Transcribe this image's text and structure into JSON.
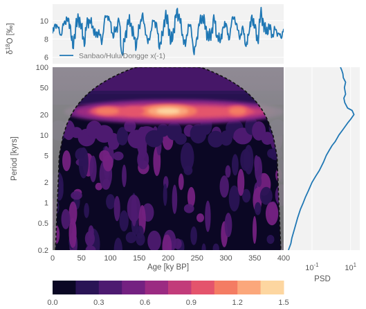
{
  "chart_data": [
    {
      "type": "line",
      "panel": "timeseries",
      "ylabel": "δ18O [‰]",
      "ylabel_super": "18",
      "ylabel_pre": "δ",
      "ylabel_post": "O [‰]",
      "ylim": [
        5.3,
        11.8
      ],
      "yticks": [
        6,
        8,
        10
      ],
      "xlim": [
        0,
        400
      ],
      "grid": true,
      "legend": "lower-left",
      "series": [
        {
          "name": "Sanbao/Hulu/Dongge x(-1)",
          "color": "#1f77b4",
          "x": [
            0,
            5,
            10,
            15,
            20,
            25,
            30,
            35,
            40,
            45,
            50,
            55,
            60,
            65,
            70,
            75,
            80,
            85,
            90,
            95,
            100,
            105,
            110,
            115,
            120,
            125,
            130,
            135,
            140,
            145,
            150,
            155,
            160,
            165,
            170,
            175,
            180,
            185,
            190,
            195,
            200,
            205,
            210,
            215,
            220,
            225,
            230,
            235,
            240,
            245,
            250,
            255,
            260,
            265,
            270,
            275,
            280,
            285,
            290,
            295,
            300,
            305,
            310,
            315,
            320,
            325,
            330,
            335,
            340,
            345,
            350,
            355,
            360,
            365,
            370,
            375,
            380,
            385,
            390,
            395,
            400
          ],
          "y": [
            8.6,
            9.6,
            9.2,
            8.4,
            9.8,
            10.2,
            9.6,
            7.0,
            9.4,
            10.1,
            9.6,
            7.2,
            10.3,
            9.7,
            9.4,
            8.2,
            9.0,
            7.4,
            10.2,
            10.5,
            9.9,
            8.1,
            9.3,
            10.0,
            6.4,
            7.7,
            10.1,
            9.5,
            8.7,
            7.1,
            9.4,
            10.6,
            9.2,
            7.5,
            8.8,
            10.0,
            9.7,
            6.9,
            8.6,
            10.4,
            9.8,
            7.6,
            8.9,
            11.2,
            10.1,
            8.5,
            7.2,
            9.6,
            9.1,
            6.3,
            8.2,
            10.0,
            10.3,
            9.4,
            7.8,
            8.9,
            10.1,
            8.4,
            7.6,
            9.3,
            9.7,
            7.9,
            9.9,
            10.4,
            9.0,
            8.3,
            9.1,
            7.2,
            8.6,
            10.6,
            9.2,
            7.8,
            10.7,
            9.8,
            8.6,
            9.5,
            8.3,
            9.1,
            8.6,
            8.2,
            9.1
          ]
        }
      ]
    },
    {
      "type": "heatmap",
      "panel": "wavelet",
      "xlabel": "Age [ky BP]",
      "ylabel": "Period [kyrs]",
      "xlim": [
        0,
        400
      ],
      "xticks": [
        0,
        50,
        100,
        150,
        200,
        250,
        300,
        350,
        400
      ],
      "ylim": [
        0.2,
        100
      ],
      "yscale": "log",
      "yticks": [
        0.2,
        0.5,
        1,
        2,
        5,
        10,
        20,
        50,
        100
      ],
      "ytick_labels": [
        "0.2",
        "0.5",
        "1",
        "2",
        "5",
        "10",
        "20",
        "50",
        "100"
      ],
      "band_period": 22,
      "band_peak_ages": [
        200,
        320,
        95,
        140
      ]
    },
    {
      "type": "line",
      "panel": "psd",
      "xlabel": "PSD",
      "xscale": "log",
      "xticks": [
        0.1,
        10
      ],
      "xlim": [
        0.004,
        30
      ],
      "ylim": [
        0.2,
        100
      ],
      "yscale": "log",
      "series": [
        {
          "color": "#1f77b4",
          "period": [
            0.2,
            0.25,
            0.3,
            0.4,
            0.5,
            0.6,
            0.8,
            1.0,
            1.2,
            1.5,
            2.0,
            2.5,
            3.0,
            4.0,
            5.0,
            6.0,
            7.0,
            8.0,
            10.0,
            12.0,
            15.0,
            17.0,
            20.0,
            23.0,
            25.0,
            30.0,
            35.0,
            40.0,
            50.0,
            60.0,
            70.0,
            80.0,
            90.0,
            100.0
          ],
          "psd": [
            0.006,
            0.008,
            0.009,
            0.012,
            0.015,
            0.018,
            0.025,
            0.035,
            0.045,
            0.065,
            0.1,
            0.16,
            0.24,
            0.4,
            0.55,
            0.8,
            1.1,
            1.6,
            2.5,
            4.0,
            7.0,
            10.0,
            15.0,
            12.0,
            7.0,
            5.0,
            4.5,
            5.5,
            4.8,
            5.5,
            4.2,
            4.0,
            3.5,
            3.0
          ]
        }
      ]
    },
    {
      "type": "colorbar",
      "range": [
        0,
        1.5
      ],
      "ticks": [
        0.0,
        0.3,
        0.6,
        0.9,
        1.2,
        1.5
      ],
      "tick_labels": [
        "0.0",
        "0.3",
        "0.6",
        "0.9",
        "1.2",
        "1.5"
      ],
      "colors": [
        "#0b0724",
        "#2a1455",
        "#4d1a70",
        "#742181",
        "#9b2b82",
        "#c23c7a",
        "#e4546c",
        "#f47c63",
        "#fba77b",
        "#fdd6a0"
      ]
    }
  ]
}
